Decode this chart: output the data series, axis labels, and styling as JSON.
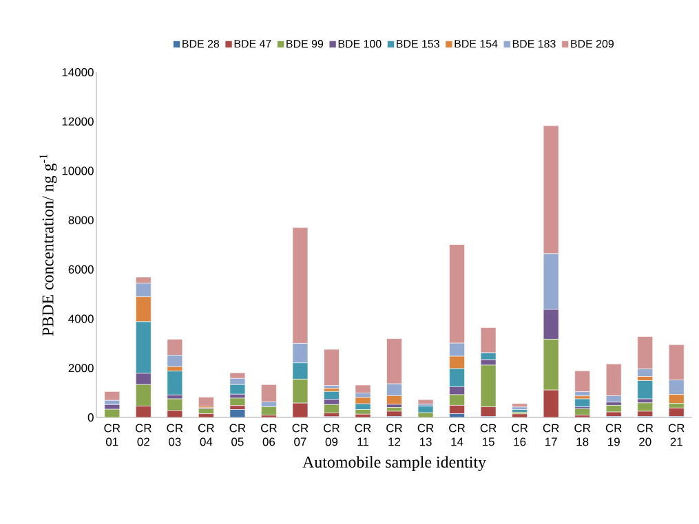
{
  "chart_data": {
    "type": "bar",
    "stacked": true,
    "xlabel": "Automobile sample identity",
    "ylabel": "PBDE concentration/ ng g$^{-1}$",
    "categories": [
      "CR 01",
      "CR 02",
      "CR 03",
      "CR 04",
      "CR 05",
      "CR 06",
      "CR 07",
      "CR 09",
      "CR 11",
      "CR 12",
      "CR 13",
      "CR 14",
      "CR 15",
      "CR 16",
      "CR 17",
      "CR 18",
      "CR 19",
      "CR 20",
      "CR 21"
    ],
    "series": [
      {
        "name": "BDE 28",
        "color": "#4572a7",
        "values": [
          0,
          0,
          0,
          0,
          320,
          0,
          0,
          30,
          0,
          40,
          0,
          150,
          40,
          0,
          0,
          0,
          40,
          40,
          40
        ]
      },
      {
        "name": "BDE 47",
        "color": "#aa4643",
        "values": [
          null,
          460,
          280,
          150,
          160,
          90,
          580,
          150,
          130,
          210,
          null,
          340,
          390,
          140,
          1110,
          90,
          180,
          210,
          340
        ]
      },
      {
        "name": "BDE 99",
        "color": "#89a54e",
        "values": [
          330,
          870,
          470,
          200,
          300,
          340,
          970,
          340,
          190,
          150,
          190,
          430,
          1690,
          70,
          2060,
          260,
          270,
          340,
          190
        ]
      },
      {
        "name": "BDE 100",
        "color": "#71588f",
        "values": [
          190,
          460,
          160,
          40,
          160,
          0,
          0,
          210,
          0,
          130,
          0,
          320,
          220,
          0,
          1210,
          80,
          130,
          160,
          0
        ]
      },
      {
        "name": "BDE 153",
        "color": "#4198af",
        "values": [
          0,
          2090,
          970,
          0,
          390,
          0,
          660,
          320,
          230,
          0,
          270,
          740,
          280,
          110,
          0,
          320,
          0,
          740,
          0
        ]
      },
      {
        "name": "BDE 154",
        "color": "#db843d",
        "values": [
          0,
          1010,
          180,
          70,
          0,
          0,
          0,
          130,
          260,
          350,
          0,
          500,
          0,
          0,
          0,
          120,
          0,
          170,
          360
        ]
      },
      {
        "name": "BDE 183",
        "color": "#93a9cf",
        "values": [
          170,
          550,
          460,
          0,
          250,
          200,
          790,
          110,
          180,
          480,
          80,
          530,
          0,
          100,
          2260,
          170,
          260,
          310,
          590
        ]
      },
      {
        "name": "BDE 209",
        "color": "#d19392",
        "values": [
          360,
          250,
          650,
          360,
          230,
          700,
          4700,
          1470,
          320,
          1830,
          180,
          4000,
          1020,
          140,
          5190,
          850,
          1290,
          1310,
          1430
        ]
      }
    ],
    "ylim": [
      0,
      14000
    ],
    "yticks": [
      0,
      2000,
      4000,
      6000,
      8000,
      10000,
      12000,
      14000
    ],
    "legend": "top"
  }
}
